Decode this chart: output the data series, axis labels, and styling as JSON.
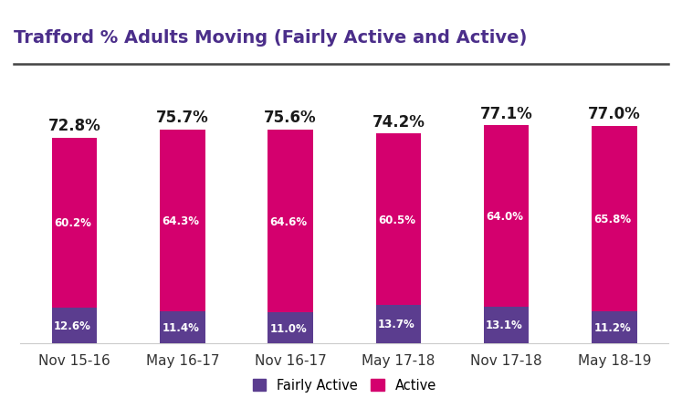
{
  "title": "Trafford % Adults Moving (Fairly Active and Active)",
  "categories": [
    "Nov 15-16",
    "May 16-17",
    "Nov 16-17",
    "May 17-18",
    "Nov 17-18",
    "May 18-19"
  ],
  "fairly_active": [
    12.6,
    11.4,
    11.0,
    13.7,
    13.1,
    11.2
  ],
  "active": [
    60.2,
    64.3,
    64.6,
    60.5,
    64.0,
    65.8
  ],
  "totals": [
    72.8,
    75.7,
    75.6,
    74.2,
    77.1,
    77.0
  ],
  "fairly_active_color": "#5b3d8f",
  "active_color": "#d4006e",
  "title_color": "#4b2e8a",
  "total_label_color": "#1a1a1a",
  "background_color": "#ffffff",
  "legend_labels": [
    "Fairly Active",
    "Active"
  ],
  "bar_width": 0.42,
  "ylim": [
    0,
    95
  ],
  "title_fontsize": 14,
  "label_fontsize": 8.5,
  "total_fontsize": 12,
  "xtick_fontsize": 11
}
